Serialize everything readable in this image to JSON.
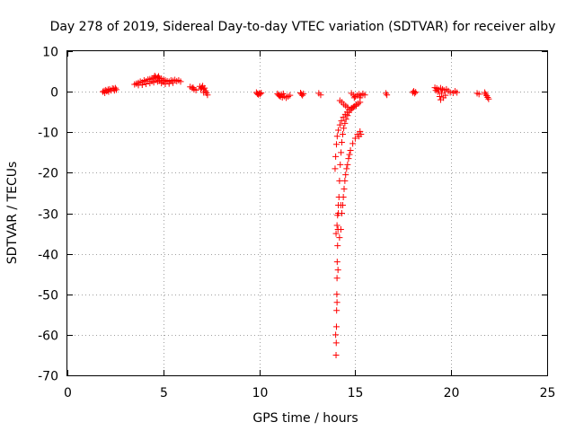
{
  "chart_data": {
    "type": "scatter",
    "title": "Day 278 of 2019, Sidereal Day-to-day VTEC variation (SDTVAR) for receiver alby",
    "xlabel": "GPS time / hours",
    "ylabel": "SDTVAR / TECUs",
    "xlim": [
      0,
      25
    ],
    "ylim": [
      -70,
      10
    ],
    "xticks": [
      0,
      5,
      10,
      15,
      20,
      25
    ],
    "yticks": [
      10,
      0,
      -10,
      -20,
      -30,
      -40,
      -50,
      -60,
      -70
    ],
    "xtick_labels": [
      "0",
      "5",
      "10",
      "15",
      "20",
      "25"
    ],
    "ytick_labels": [
      "10",
      "0",
      "-10",
      "-20",
      "-30",
      "-40",
      "-50",
      "-60",
      "-70"
    ],
    "grid": true,
    "marker": "+",
    "color": "#ff0000",
    "series": [
      {
        "name": "SDTVAR",
        "points": [
          [
            1.85,
            0.0
          ],
          [
            1.92,
            0.2
          ],
          [
            2.0,
            0.4
          ],
          [
            2.05,
            0.1
          ],
          [
            2.12,
            0.5
          ],
          [
            2.2,
            0.6
          ],
          [
            2.28,
            0.3
          ],
          [
            2.35,
            0.8
          ],
          [
            2.42,
            0.7
          ],
          [
            2.5,
            0.9
          ],
          [
            2.55,
            0.5
          ],
          [
            1.95,
            -0.3
          ],
          [
            2.15,
            0.0
          ],
          [
            2.45,
            0.3
          ],
          [
            3.5,
            1.8
          ],
          [
            3.6,
            2.0
          ],
          [
            3.7,
            2.2
          ],
          [
            3.8,
            2.5
          ],
          [
            3.9,
            2.3
          ],
          [
            4.0,
            2.8
          ],
          [
            4.1,
            2.6
          ],
          [
            4.2,
            3.0
          ],
          [
            4.3,
            3.1
          ],
          [
            4.4,
            3.3
          ],
          [
            4.5,
            3.4
          ],
          [
            4.6,
            3.6
          ],
          [
            4.7,
            3.5
          ],
          [
            4.8,
            3.3
          ],
          [
            4.9,
            3.2
          ],
          [
            5.0,
            2.9
          ],
          [
            5.1,
            2.8
          ],
          [
            5.2,
            2.6
          ],
          [
            5.3,
            2.5
          ],
          [
            5.4,
            2.8
          ],
          [
            5.5,
            2.7
          ],
          [
            5.6,
            2.9
          ],
          [
            5.7,
            2.6
          ],
          [
            5.8,
            2.8
          ],
          [
            5.9,
            2.5
          ],
          [
            3.7,
            1.6
          ],
          [
            3.9,
            1.7
          ],
          [
            4.1,
            1.9
          ],
          [
            4.3,
            2.1
          ],
          [
            4.5,
            2.3
          ],
          [
            4.7,
            2.5
          ],
          [
            4.9,
            2.1
          ],
          [
            5.1,
            1.9
          ],
          [
            5.3,
            2.0
          ],
          [
            5.5,
            2.2
          ],
          [
            4.4,
            2.6
          ],
          [
            4.6,
            2.9
          ],
          [
            4.8,
            2.7
          ],
          [
            5.0,
            2.4
          ],
          [
            4.55,
            3.9
          ],
          [
            4.75,
            3.8
          ],
          [
            6.4,
            1.2
          ],
          [
            6.5,
            0.9
          ],
          [
            6.6,
            0.6
          ],
          [
            6.7,
            0.4
          ],
          [
            6.55,
            1.0
          ],
          [
            6.9,
            1.3
          ],
          [
            7.0,
            1.0
          ],
          [
            7.1,
            0.6
          ],
          [
            7.2,
            0.2
          ],
          [
            7.25,
            -0.3
          ],
          [
            7.3,
            -0.8
          ],
          [
            7.05,
            1.4
          ],
          [
            7.15,
            0.9
          ],
          [
            6.95,
            0.7
          ],
          [
            7.1,
            -0.2
          ],
          [
            9.85,
            -0.2
          ],
          [
            9.9,
            -0.5
          ],
          [
            9.95,
            -0.7
          ],
          [
            10.0,
            -0.4
          ],
          [
            10.05,
            -0.6
          ],
          [
            10.1,
            -0.3
          ],
          [
            10.95,
            -0.5
          ],
          [
            11.0,
            -0.8
          ],
          [
            11.05,
            -1.0
          ],
          [
            11.1,
            -1.2
          ],
          [
            11.15,
            -0.7
          ],
          [
            11.2,
            -1.4
          ],
          [
            11.3,
            -1.1
          ],
          [
            11.4,
            -1.5
          ],
          [
            11.5,
            -1.2
          ],
          [
            11.6,
            -0.9
          ],
          [
            11.25,
            -0.5
          ],
          [
            12.15,
            -0.3
          ],
          [
            12.2,
            -0.6
          ],
          [
            12.25,
            -0.9
          ],
          [
            12.3,
            -0.5
          ],
          [
            13.1,
            -0.4
          ],
          [
            13.2,
            -0.8
          ],
          [
            14.2,
            -2.2
          ],
          [
            14.3,
            -2.6
          ],
          [
            14.4,
            -3.1
          ],
          [
            14.5,
            -3.5
          ],
          [
            14.6,
            -3.8
          ],
          [
            14.8,
            -0.4
          ],
          [
            14.9,
            -0.8
          ],
          [
            15.0,
            -1.2
          ],
          [
            15.1,
            -0.9
          ],
          [
            15.2,
            -0.6
          ],
          [
            15.3,
            -0.9
          ],
          [
            15.4,
            -0.5
          ],
          [
            15.5,
            -0.8
          ],
          [
            14.95,
            -1.5
          ],
          [
            15.25,
            -1.5
          ],
          [
            16.6,
            -0.4
          ],
          [
            16.65,
            -0.8
          ],
          [
            18.0,
            -0.2
          ],
          [
            18.05,
            0.1
          ],
          [
            18.1,
            -0.4
          ],
          [
            18.15,
            -0.1
          ],
          [
            19.15,
            1.0
          ],
          [
            19.25,
            0.8
          ],
          [
            19.35,
            0.5
          ],
          [
            19.45,
            0.9
          ],
          [
            19.55,
            0.6
          ],
          [
            19.65,
            0.3
          ],
          [
            19.75,
            0.6
          ],
          [
            19.85,
            0.2
          ],
          [
            19.95,
            -0.2
          ],
          [
            19.3,
            0.0
          ],
          [
            19.5,
            -0.4
          ],
          [
            19.7,
            -0.9
          ],
          [
            19.4,
            -1.2
          ],
          [
            19.6,
            -1.5
          ],
          [
            19.45,
            -2.0
          ],
          [
            19.2,
            0.3
          ],
          [
            20.1,
            -0.3
          ],
          [
            20.2,
            0.1
          ],
          [
            20.3,
            -0.2
          ],
          [
            21.35,
            -0.4
          ],
          [
            21.45,
            -0.6
          ],
          [
            21.75,
            -0.2
          ],
          [
            21.8,
            -0.6
          ],
          [
            21.85,
            -1.0
          ],
          [
            21.9,
            -1.4
          ],
          [
            21.95,
            -1.8
          ],
          [
            14.0,
            -65.0
          ],
          [
            14.01,
            -62.0
          ],
          [
            14.02,
            -58.0
          ],
          [
            14.03,
            -54.0
          ],
          [
            14.04,
            -50.0
          ],
          [
            14.05,
            -46.0
          ],
          [
            14.06,
            -42.0
          ],
          [
            14.08,
            -38.0
          ],
          [
            14.1,
            -34.0
          ],
          [
            14.12,
            -30.0
          ],
          [
            14.15,
            -26.0
          ],
          [
            14.18,
            -22.0
          ],
          [
            14.22,
            -18.0
          ],
          [
            14.26,
            -15.0
          ],
          [
            14.3,
            -12.5
          ],
          [
            14.35,
            -10.5
          ],
          [
            14.4,
            -9.0
          ],
          [
            14.46,
            -7.8
          ],
          [
            14.52,
            -6.8
          ],
          [
            14.6,
            -5.9
          ],
          [
            14.68,
            -5.1
          ],
          [
            14.76,
            -4.5
          ],
          [
            14.85,
            -4.0
          ],
          [
            14.95,
            -3.6
          ],
          [
            15.05,
            -3.2
          ],
          [
            15.15,
            -2.9
          ],
          [
            15.25,
            -2.6
          ],
          [
            13.98,
            -60.0
          ],
          [
            14.05,
            -52.0
          ],
          [
            14.1,
            -44.0
          ],
          [
            14.18,
            -36.0
          ],
          [
            14.25,
            -28.0
          ],
          [
            13.95,
            -19.0
          ],
          [
            13.98,
            -16.0
          ],
          [
            14.02,
            -13.0
          ],
          [
            14.06,
            -11.0
          ],
          [
            14.12,
            -9.5
          ],
          [
            14.2,
            -8.2
          ],
          [
            14.28,
            -7.2
          ],
          [
            14.38,
            -6.3
          ],
          [
            14.48,
            -5.6
          ],
          [
            14.58,
            -5.0
          ],
          [
            14.68,
            -4.5
          ],
          [
            14.8,
            -4.1
          ],
          [
            14.92,
            -3.8
          ],
          [
            15.05,
            -3.5
          ],
          [
            14.0,
            -35.0
          ],
          [
            14.05,
            -33.0
          ],
          [
            14.08,
            -30.5
          ],
          [
            14.12,
            -28.0
          ],
          [
            14.25,
            -34.0
          ],
          [
            14.3,
            -30.0
          ],
          [
            14.38,
            -26.0
          ],
          [
            14.46,
            -22.0
          ],
          [
            14.55,
            -19.0
          ],
          [
            14.65,
            -16.5
          ],
          [
            14.75,
            -14.5
          ],
          [
            14.87,
            -12.8
          ],
          [
            15.0,
            -11.5
          ],
          [
            15.12,
            -10.5
          ],
          [
            15.25,
            -9.8
          ],
          [
            15.3,
            -10.5
          ],
          [
            15.2,
            -11.0
          ],
          [
            14.7,
            -15.5
          ],
          [
            14.6,
            -18.0
          ],
          [
            14.5,
            -20.5
          ],
          [
            14.42,
            -24.0
          ],
          [
            14.35,
            -28.0
          ]
        ]
      }
    ]
  }
}
